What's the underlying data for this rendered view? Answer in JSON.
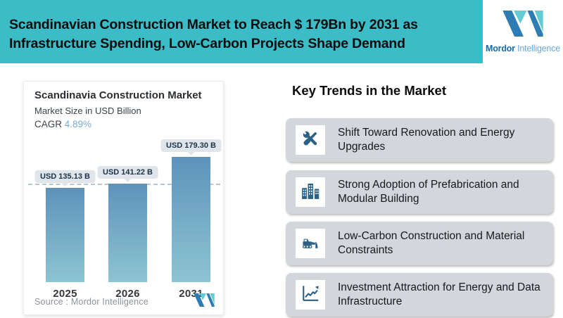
{
  "header": {
    "title_line1": "Scandinavian Construction Market to Reach $ 179Bn by 2031 as",
    "title_line2": "Infrastructure Spending, Low-Carbon Projects Shape Demand",
    "logo": {
      "brand_bold": "Mordor",
      "brand_light": "Intelligence"
    }
  },
  "chart_card": {
    "title": "Scandinavia Construction Market",
    "subtitle": "Market Size in USD Billion",
    "cagr_label": "CAGR",
    "cagr_value": "4.89%",
    "source_label": "Source :  Mordor Intelligence"
  },
  "chart_data": {
    "type": "bar",
    "title": "Scandinavia Construction Market",
    "subtitle": "Market Size in USD Billion",
    "cagr": "4.89%",
    "unit": "USD Billion",
    "categories": [
      "2025",
      "2026",
      "2031"
    ],
    "values": [
      135.13,
      141.22,
      179.3
    ],
    "value_labels": [
      "USD 135.13 B",
      "USD 141.22 B",
      "USD 179.30 B"
    ],
    "ylim": [
      0,
      190
    ],
    "grid": false,
    "legend": false,
    "reference_line": {
      "style": "dashed",
      "value_estimate": 139.5
    },
    "bar_gradient": [
      "#5E92BB",
      "#8DC4D2"
    ]
  },
  "trends": {
    "heading": "Key Trends in the Market",
    "items": [
      {
        "icon": "tools-icon",
        "label": "Shift Toward Renovation and Energy Upgrades"
      },
      {
        "icon": "buildings-icon",
        "label": "Strong Adoption of Prefabrication and Modular Building"
      },
      {
        "icon": "bulldozer-icon",
        "label": "Low-Carbon Construction and Material Constraints"
      },
      {
        "icon": "chart-up-icon",
        "label": "Investment Attraction for Energy and Data Infrastructure"
      }
    ]
  },
  "colors": {
    "header_background": "#3BBCC7",
    "trend_card_background": "#D3D7DC",
    "icon_blue": "#2B6187",
    "logo_dark_blue": "#2E7CB4",
    "logo_teal": "#62CCD5",
    "cagr_value_blue": "#77ACCF",
    "chip_background": "#DFE5EA",
    "dashed_line": "#AEC9DA"
  }
}
